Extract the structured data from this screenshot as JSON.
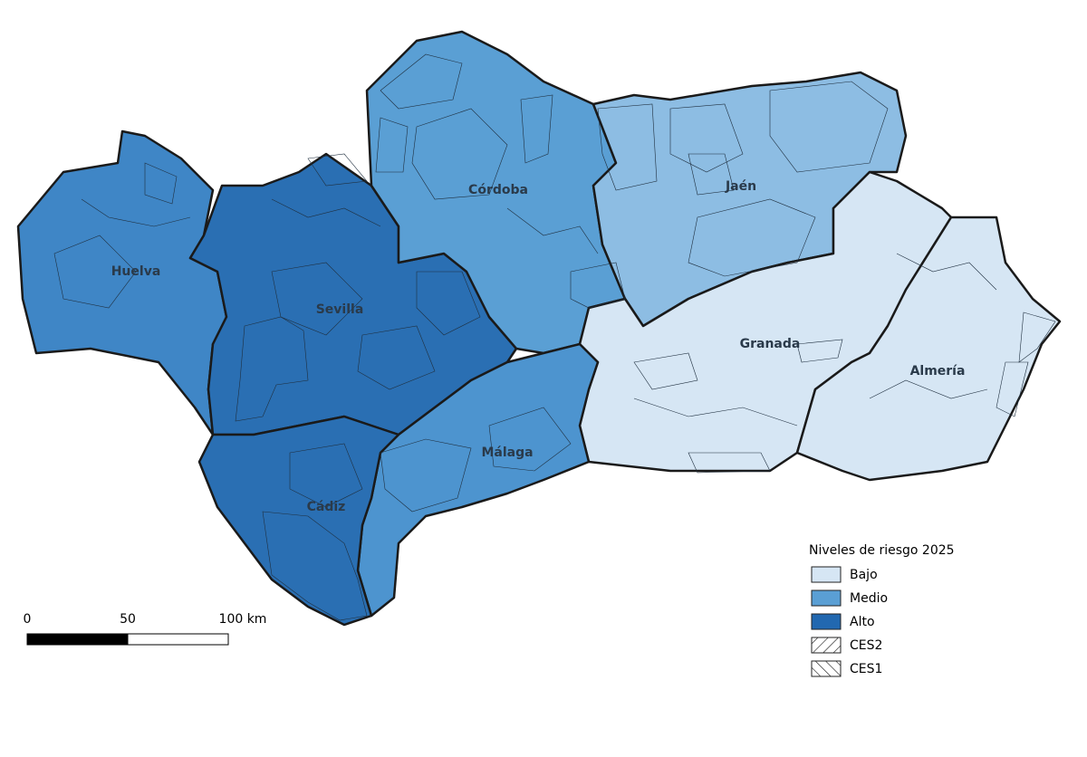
{
  "map": {
    "provinces": [
      "Huelva",
      "Sevilla",
      "Córdoba",
      "Jaén",
      "Granada",
      "Almería",
      "Málaga",
      "Cádiz"
    ],
    "legend": {
      "title": "Niveles de riesgo 2025",
      "items": [
        {
          "name": "Bajo",
          "color": "#d6e6f4"
        },
        {
          "name": "Medio",
          "color": "#5a9fd4"
        },
        {
          "name": "Alto",
          "color": "#2268b0"
        },
        {
          "name": "CES2",
          "hatch": "forward"
        },
        {
          "name": "CES1",
          "hatch": "backward"
        }
      ]
    },
    "scale_bar": {
      "labels": [
        "0",
        "50",
        "100 km"
      ]
    }
  }
}
